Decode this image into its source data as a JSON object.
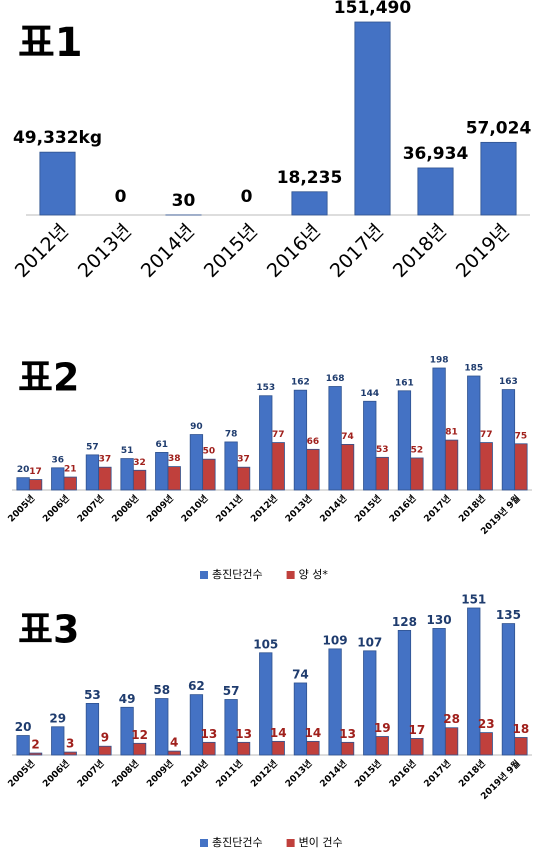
{
  "chart_data": [
    {
      "type": "bar",
      "title": "표1",
      "categories": [
        "2012년",
        "2013년",
        "2014년",
        "2015년",
        "2016년",
        "2017년",
        "2018년",
        "2019년"
      ],
      "values": [
        49332,
        0,
        30,
        0,
        18235,
        151490,
        36934,
        57024
      ],
      "value_labels": [
        "49,332kg",
        "0",
        "30",
        "0",
        "18,235",
        "151,490",
        "36,934",
        "57,024"
      ],
      "color": "#4472c4"
    },
    {
      "type": "bar",
      "title": "표2",
      "categories": [
        "2005년",
        "2006년",
        "2007년",
        "2008년",
        "2009년",
        "2010년",
        "2011년",
        "2012년",
        "2013년",
        "2014년",
        "2015년",
        "2016년",
        "2017년",
        "2018년",
        "2019년 9월"
      ],
      "series": [
        {
          "name": "총진단건수",
          "color": "#4472c4",
          "values": [
            20,
            36,
            57,
            51,
            61,
            90,
            78,
            153,
            162,
            168,
            144,
            161,
            198,
            185,
            163
          ]
        },
        {
          "name": "양 성*",
          "color": "#c0403c",
          "values": [
            17,
            21,
            37,
            32,
            38,
            50,
            37,
            77,
            66,
            74,
            53,
            52,
            81,
            77,
            75
          ]
        }
      ]
    },
    {
      "type": "bar",
      "title": "표3",
      "categories": [
        "2005년",
        "2006년",
        "2007년",
        "2008년",
        "2009년",
        "2010년",
        "2011년",
        "2012년",
        "2013년",
        "2014년",
        "2015년",
        "2016년",
        "2017년",
        "2018년",
        "2019년 9월"
      ],
      "series": [
        {
          "name": "총진단건수",
          "color": "#4472c4",
          "values": [
            20,
            29,
            53,
            49,
            58,
            62,
            57,
            105,
            74,
            109,
            107,
            128,
            130,
            151,
            135
          ]
        },
        {
          "name": "변이 건수",
          "color": "#c0403c",
          "values": [
            2,
            3,
            9,
            12,
            4,
            13,
            13,
            14,
            14,
            13,
            19,
            17,
            28,
            23,
            18
          ]
        }
      ]
    }
  ]
}
